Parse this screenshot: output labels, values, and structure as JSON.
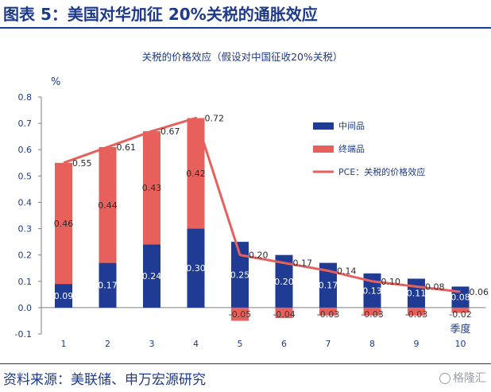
{
  "header": {
    "title": "图表 5：美国对华加征 20%关税的通胀效应"
  },
  "footer": {
    "source": "资料来源：美联储、申万宏源研究",
    "watermark": "格隆汇"
  },
  "colors": {
    "intermediate": "#1f3b94",
    "final": "#e8605c",
    "pce": "#e8605c",
    "brand": "#1e3a8a"
  },
  "chart_data": {
    "type": "bar",
    "title": "关税的价格效应（假设对中国征收20%关税）",
    "ylabel": "%",
    "xlabel": "季度",
    "ylim": [
      -0.1,
      0.8
    ],
    "yticks": [
      "-0.1",
      "0.0",
      "0.1",
      "0.2",
      "0.3",
      "0.4",
      "0.5",
      "0.6",
      "0.7",
      "0.8"
    ],
    "categories": [
      "1",
      "2",
      "3",
      "4",
      "5",
      "6",
      "7",
      "8",
      "9",
      "10"
    ],
    "stacked": true,
    "series": [
      {
        "name": "中间品",
        "type": "bar",
        "values": [
          0.09,
          0.17,
          0.24,
          0.3,
          0.25,
          0.2,
          0.17,
          0.13,
          0.11,
          0.08
        ],
        "labels": [
          "0.09",
          "0.17",
          "0.24",
          "0.30",
          "0.25",
          "0.20",
          "0.17",
          "0.13",
          "0.11",
          "0.08"
        ]
      },
      {
        "name": "终端品",
        "type": "bar",
        "values": [
          0.46,
          0.44,
          0.43,
          0.42,
          -0.05,
          -0.04,
          -0.03,
          -0.03,
          -0.03,
          -0.02
        ],
        "labels": [
          "0.46",
          "0.44",
          "0.43",
          "0.42",
          "-0.05",
          "-0.04",
          "-0.03",
          "-0.03",
          "-0.03",
          "-0.02"
        ]
      },
      {
        "name": "PCE：关税的价格效应",
        "type": "line",
        "values": [
          0.55,
          0.61,
          0.67,
          0.72,
          0.2,
          0.17,
          0.14,
          0.1,
          0.08,
          0.06
        ],
        "labels": [
          "0.55",
          "0.61",
          "0.67",
          "0.72",
          "0.20",
          "0.17",
          "0.14",
          "0.10",
          "0.08",
          "0.06"
        ]
      }
    ],
    "legend_position": "right",
    "grid": false
  }
}
